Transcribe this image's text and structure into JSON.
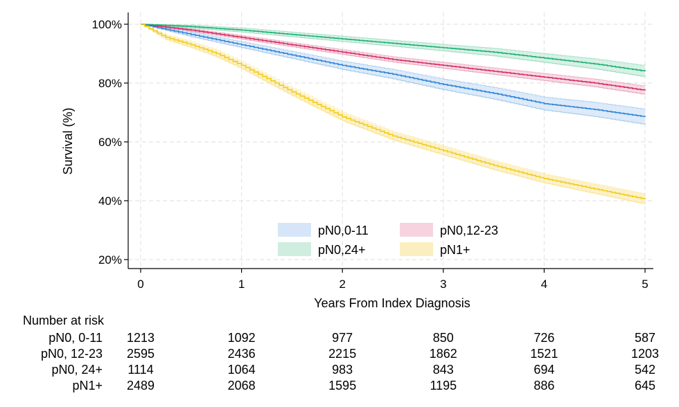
{
  "chart_data": {
    "type": "line",
    "subtype": "kaplan-meier survival with confidence bands",
    "xlabel": "Years From Index Diagnosis",
    "ylabel": "Survival (%)",
    "xlim": [
      0,
      5
    ],
    "ylim": [
      20,
      100
    ],
    "x_ticks": [
      "0",
      "1",
      "2",
      "3",
      "4",
      "5"
    ],
    "y_ticks": [
      "20%",
      "40%",
      "60%",
      "80%",
      "100%"
    ],
    "grid": true,
    "legend_position": "bottom-center inside plot",
    "series": [
      {
        "name": "pN0,0-11",
        "color": "#2f83d6",
        "band_color": "#d6e6f8",
        "x": [
          0,
          0.5,
          1,
          1.5,
          2,
          2.5,
          3,
          3.5,
          4,
          4.5,
          5
        ],
        "y": [
          100,
          96.5,
          93,
          89.5,
          86,
          83,
          79.5,
          76.5,
          73,
          71,
          68.5
        ],
        "ci_half_width": [
          0,
          0.8,
          1.0,
          1.2,
          1.4,
          1.6,
          1.8,
          2.0,
          2.2,
          2.4,
          2.6
        ]
      },
      {
        "name": "pN0,12-23",
        "color": "#d12c63",
        "band_color": "#f6d3df",
        "x": [
          0,
          0.5,
          1,
          1.5,
          2,
          2.5,
          3,
          3.5,
          4,
          4.5,
          5
        ],
        "y": [
          100,
          98,
          95.5,
          93,
          90.5,
          88,
          86,
          84,
          82,
          80,
          77.5
        ],
        "ci_half_width": [
          0,
          0.4,
          0.6,
          0.7,
          0.8,
          0.9,
          1.0,
          1.1,
          1.2,
          1.3,
          1.4
        ]
      },
      {
        "name": "pN0,24+",
        "color": "#1fae72",
        "band_color": "#cfeee0",
        "x": [
          0,
          0.5,
          1,
          1.5,
          2,
          2.5,
          3,
          3.5,
          4,
          4.5,
          5
        ],
        "y": [
          100,
          99.2,
          98,
          96.5,
          95,
          93.5,
          92,
          90.5,
          88.5,
          86.5,
          84
        ],
        "ci_half_width": [
          0,
          0.5,
          0.7,
          0.8,
          0.9,
          1.0,
          1.1,
          1.3,
          1.5,
          1.7,
          1.9
        ]
      },
      {
        "name": "pN1+",
        "color": "#f2cc1a",
        "band_color": "#fbefc0",
        "x": [
          0,
          0.25,
          0.5,
          0.75,
          1,
          1.5,
          2,
          2.5,
          3,
          3.5,
          4,
          4.5,
          5
        ],
        "y": [
          100,
          95.5,
          93,
          90,
          86,
          77,
          68.5,
          62,
          57,
          52,
          47.5,
          44,
          40.5
        ],
        "ci_half_width": [
          0,
          0.8,
          1.0,
          1.1,
          1.2,
          1.3,
          1.4,
          1.4,
          1.5,
          1.5,
          1.5,
          1.6,
          1.7
        ]
      }
    ],
    "legend_entries": [
      {
        "label": "pN0,0-11",
        "swatch": "#d6e6f8"
      },
      {
        "label": "pN0,12-23",
        "swatch": "#f6d3df"
      },
      {
        "label": "pN0,24+",
        "swatch": "#cfeee0"
      },
      {
        "label": "pN1+",
        "swatch": "#fbefc0"
      }
    ]
  },
  "risk_table": {
    "title": "Number at risk",
    "times": [
      0,
      1,
      2,
      3,
      4,
      5
    ],
    "rows": [
      {
        "label": "pN0, 0-11",
        "values": [
          "1213",
          "1092",
          "977",
          "850",
          "726",
          "587"
        ]
      },
      {
        "label": "pN0, 12-23",
        "values": [
          "2595",
          "2436",
          "2215",
          "1862",
          "1521",
          "1203"
        ]
      },
      {
        "label": "pN0, 24+",
        "values": [
          "1114",
          "1064",
          "983",
          "843",
          "694",
          "542"
        ]
      },
      {
        "label": "pN1+",
        "values": [
          "2489",
          "2068",
          "1595",
          "1195",
          "886",
          "645"
        ]
      }
    ]
  }
}
